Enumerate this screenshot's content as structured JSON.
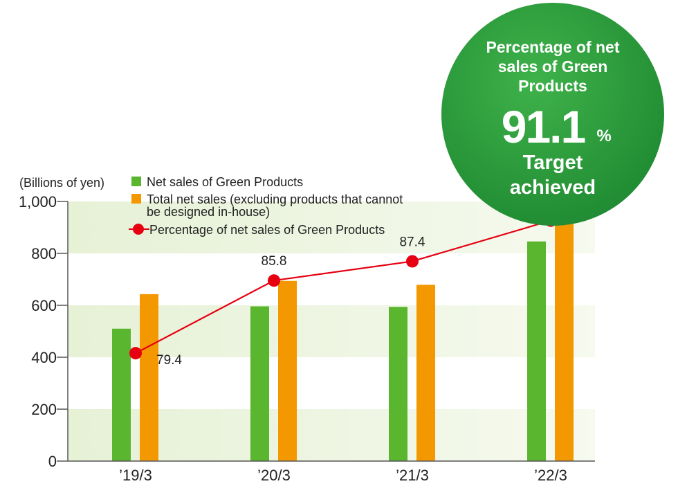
{
  "chart_data": {
    "type": "bar",
    "unit_label": "(Billions of yen)",
    "categories": [
      "’19/3",
      "’20/3",
      "’21/3",
      "’22/3"
    ],
    "ylim": [
      0,
      1000
    ],
    "yticks": [
      "0",
      "200",
      "400",
      "600",
      "800",
      "1,000"
    ],
    "series": [
      {
        "name": "Net sales of Green Products",
        "values": [
          510,
          596,
          594,
          846
        ],
        "color": "#5ab52f"
      },
      {
        "name": "Total net sales (excluding products that cannot be designed in-house)",
        "name_line1": "Total net sales (excluding products that cannot",
        "name_line2": "be designed in-house)",
        "values": [
          643,
          694,
          679,
          929
        ],
        "color": "#f39800"
      }
    ],
    "line": {
      "name": "Percentage of net sales of Green Products",
      "values": [
        79.4,
        85.8,
        87.4,
        91.1
      ],
      "labels": [
        "79.4",
        "85.8",
        "87.4",
        ""
      ],
      "color": "#e60012"
    },
    "badge": {
      "line1": "Percentage of net",
      "line2": "sales of Green",
      "line3": "Products",
      "value": "91.1",
      "unit": "%",
      "status1": "Target",
      "status2": "achieved",
      "color": "#2a9d3a"
    }
  }
}
